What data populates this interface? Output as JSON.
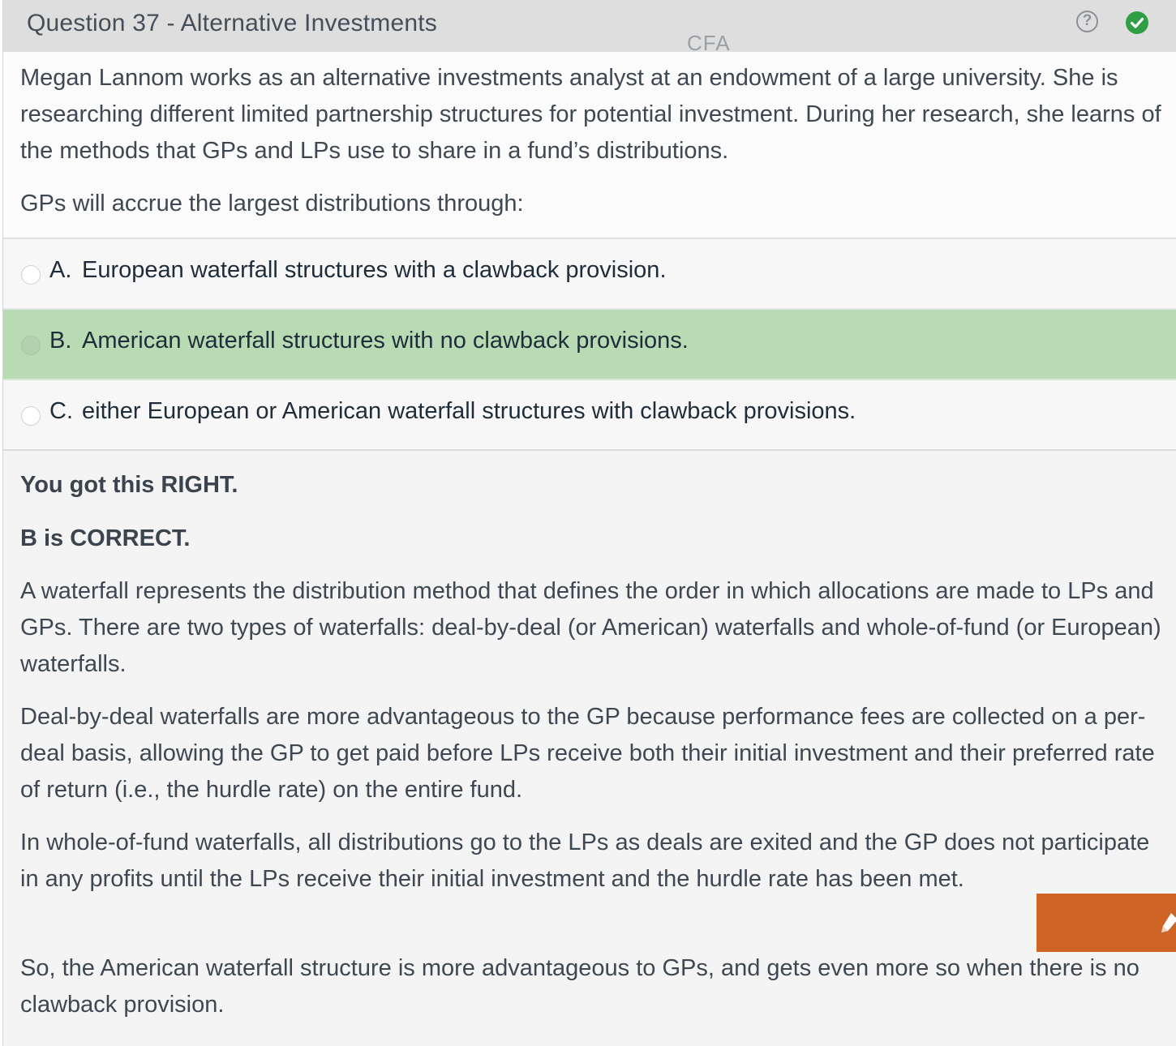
{
  "header": {
    "title": "Question 37 - Alternative Investments",
    "watermark": "CFA",
    "help_glyph": "?",
    "help_icon": "question-circle-icon",
    "status_icon": "check-circle-icon",
    "status_color": "#2f9e44"
  },
  "question": {
    "stem": "Megan Lannom works as an alternative investments analyst at an endowment of a large university. She is researching different limited partnership structures for potential investment. During her research, she learns of the methods that GPs and LPs use to share in a fund’s distributions.",
    "prompt": "GPs will accrue the largest distributions through:"
  },
  "options": [
    {
      "letter": "A.",
      "text": "European waterfall structures with a clawback provision.",
      "selected": false
    },
    {
      "letter": "B.",
      "text": "American waterfall structures with no clawback provisions.",
      "selected": true
    },
    {
      "letter": "C.",
      "text": "either European or American waterfall structures with clawback provisions.",
      "selected": false
    }
  ],
  "feedback": {
    "result": "You got this RIGHT.",
    "correct": "B is CORRECT.",
    "paragraphs": [
      "A waterfall represents the distribution method that defines the order in which allocations are made to LPs and GPs.  There are two types of waterfalls: deal-by-deal (or American) waterfalls and whole-of-fund (or European) waterfalls.",
      "Deal-by-deal waterfalls are more advantageous to the GP because performance fees are collected on a per-deal basis, allowing the GP to get paid before LPs receive both their initial investment and their preferred rate of return (i.e., the hurdle rate) on the entire fund.",
      "In whole-of-fund waterfalls, all distributions go to the LPs as deals are exited and the GP does not participate in any profits until the LPs receive their initial investment and the hurdle rate has been met.",
      "So, the American waterfall structure is more advantageous to GPs, and gets even more so when there is no clawback provision."
    ]
  },
  "floating_tab": {
    "icon": "pen-icon",
    "color": "#cf6427"
  },
  "colors": {
    "selected_option_bg": "#b9dbb4",
    "header_bg": "#dedede"
  }
}
